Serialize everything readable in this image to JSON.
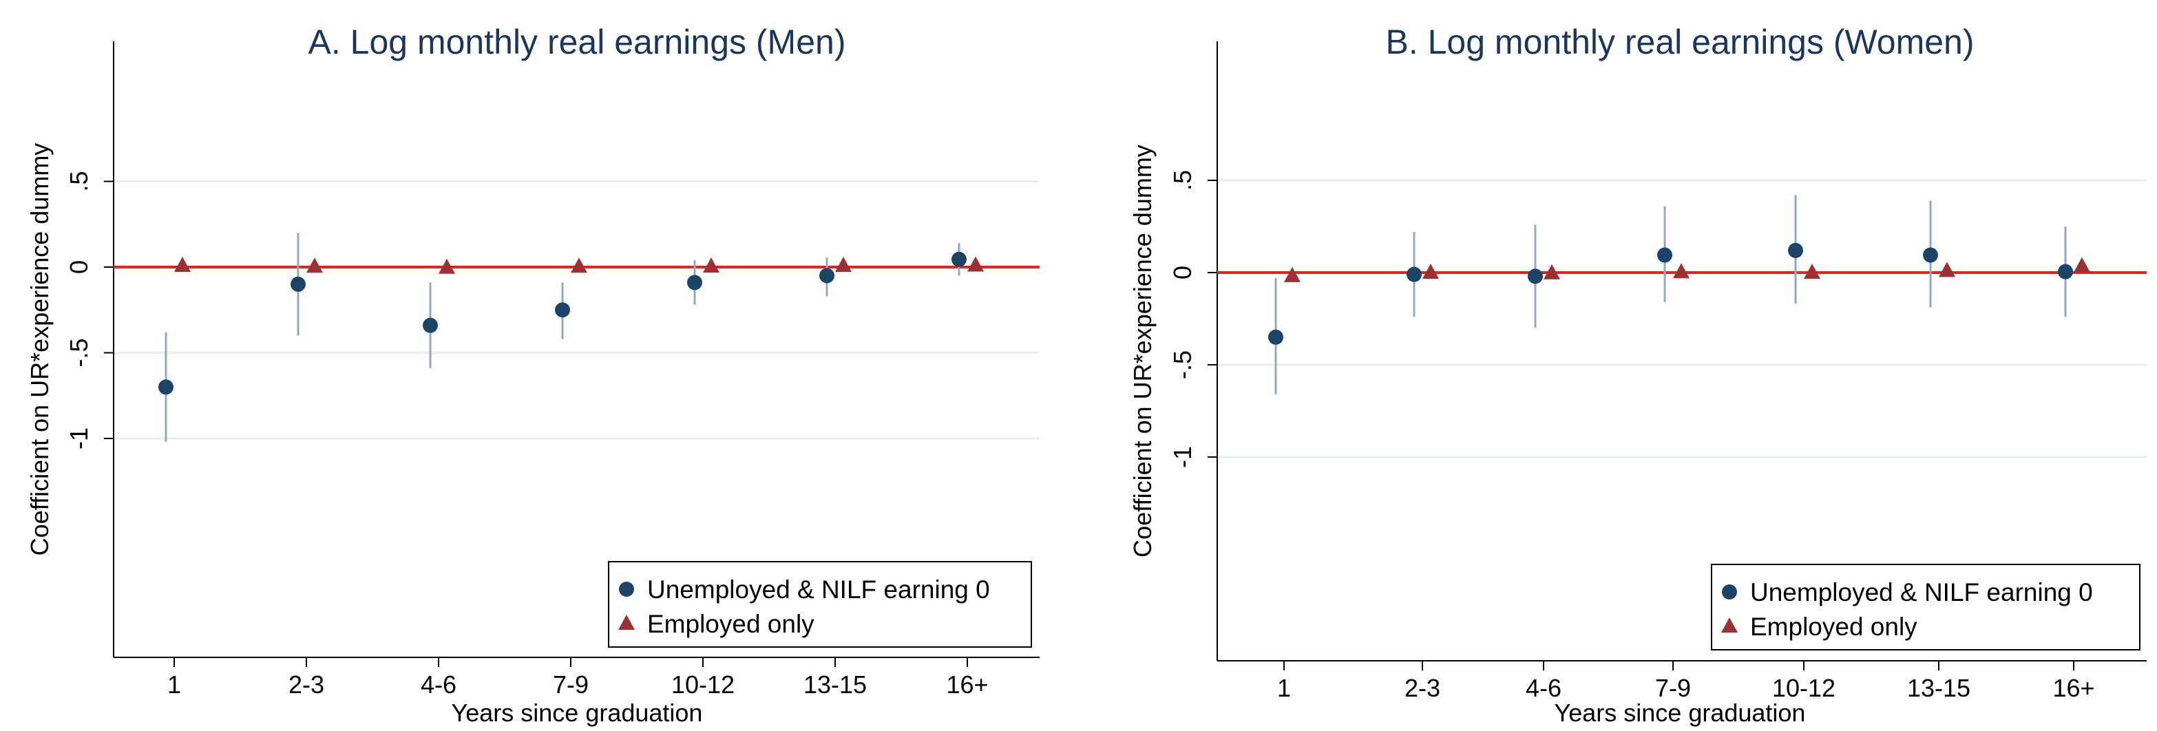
{
  "chart_data": [
    {
      "type": "scatter",
      "title": "A. Log monthly real earnings (Men)",
      "xlabel": "Years since graduation",
      "ylabel": "Coefficient on UR*experience dummy",
      "categories": [
        "1",
        "2-3",
        "4-6",
        "7-9",
        "10-12",
        "13-15",
        "16+"
      ],
      "yticks": [
        {
          "value": 0.5,
          "label": ".5"
        },
        {
          "value": 0,
          "label": "0"
        },
        {
          "value": -0.5,
          "label": "-.5"
        },
        {
          "value": -1,
          "label": "-1"
        }
      ],
      "ylim": [
        -1.05,
        0.55
      ],
      "grid": true,
      "reference_line": {
        "y": 0,
        "color": "#e3231c"
      },
      "legend": {
        "placement": "bottom-right"
      },
      "series": [
        {
          "name": "Unemployed & NILF earning 0",
          "marker": "circle",
          "color": "#1b4467",
          "ci_color": "#8fa8c6",
          "values": [
            -0.7,
            -0.1,
            -0.34,
            -0.25,
            -0.09,
            -0.05,
            0.045
          ],
          "ci_low": [
            -1.02,
            -0.4,
            -0.59,
            -0.42,
            -0.22,
            -0.17,
            -0.05
          ],
          "ci_high": [
            -0.38,
            0.2,
            -0.09,
            -0.09,
            0.04,
            0.055,
            0.14
          ]
        },
        {
          "name": "Employed only",
          "marker": "triangle",
          "color": "#9c3033",
          "ci_color": "#c89a9a",
          "values": [
            0.008,
            0.003,
            -0.003,
            0.003,
            0.004,
            0.008,
            0.01
          ],
          "ci_low": [
            -0.02,
            -0.01,
            -0.015,
            -0.01,
            -0.01,
            -0.005,
            -0.005
          ],
          "ci_high": [
            0.03,
            0.015,
            0.01,
            0.015,
            0.015,
            0.02,
            0.025
          ]
        }
      ]
    },
    {
      "type": "scatter",
      "title": "B. Log monthly real earnings (Women)",
      "xlabel": "Years since graduation",
      "ylabel": "Coefficient on UR*experience dummy",
      "categories": [
        "1",
        "2-3",
        "4-6",
        "7-9",
        "10-12",
        "13-15",
        "16+"
      ],
      "yticks": [
        {
          "value": 0.5,
          "label": ".5"
        },
        {
          "value": 0,
          "label": "0"
        },
        {
          "value": -0.5,
          "label": "-.5"
        },
        {
          "value": -1,
          "label": "-1"
        }
      ],
      "ylim": [
        -1.05,
        0.55
      ],
      "grid": true,
      "reference_line": {
        "y": 0,
        "color": "#e3231c"
      },
      "legend": {
        "placement": "bottom-right"
      },
      "series": [
        {
          "name": "Unemployed & NILF earning 0",
          "marker": "circle",
          "color": "#1b4467",
          "ci_color": "#8fa8c6",
          "values": [
            -0.35,
            -0.01,
            -0.02,
            0.095,
            0.12,
            0.095,
            0.005
          ],
          "ci_low": [
            -0.66,
            -0.24,
            -0.3,
            -0.16,
            -0.17,
            -0.19,
            -0.24
          ],
          "ci_high": [
            -0.03,
            0.22,
            0.26,
            0.36,
            0.42,
            0.39,
            0.25
          ]
        },
        {
          "name": "Employed only",
          "marker": "triangle",
          "color": "#9c3033",
          "ci_color": "#c89a9a",
          "values": [
            -0.018,
            0.0,
            -0.003,
            0.003,
            0.0,
            0.01,
            0.035
          ],
          "ci_low": [
            -0.04,
            -0.015,
            -0.02,
            -0.015,
            -0.015,
            -0.01,
            0.015
          ],
          "ci_high": [
            0.005,
            0.015,
            0.015,
            0.02,
            0.015,
            0.03,
            0.055
          ]
        }
      ]
    }
  ]
}
